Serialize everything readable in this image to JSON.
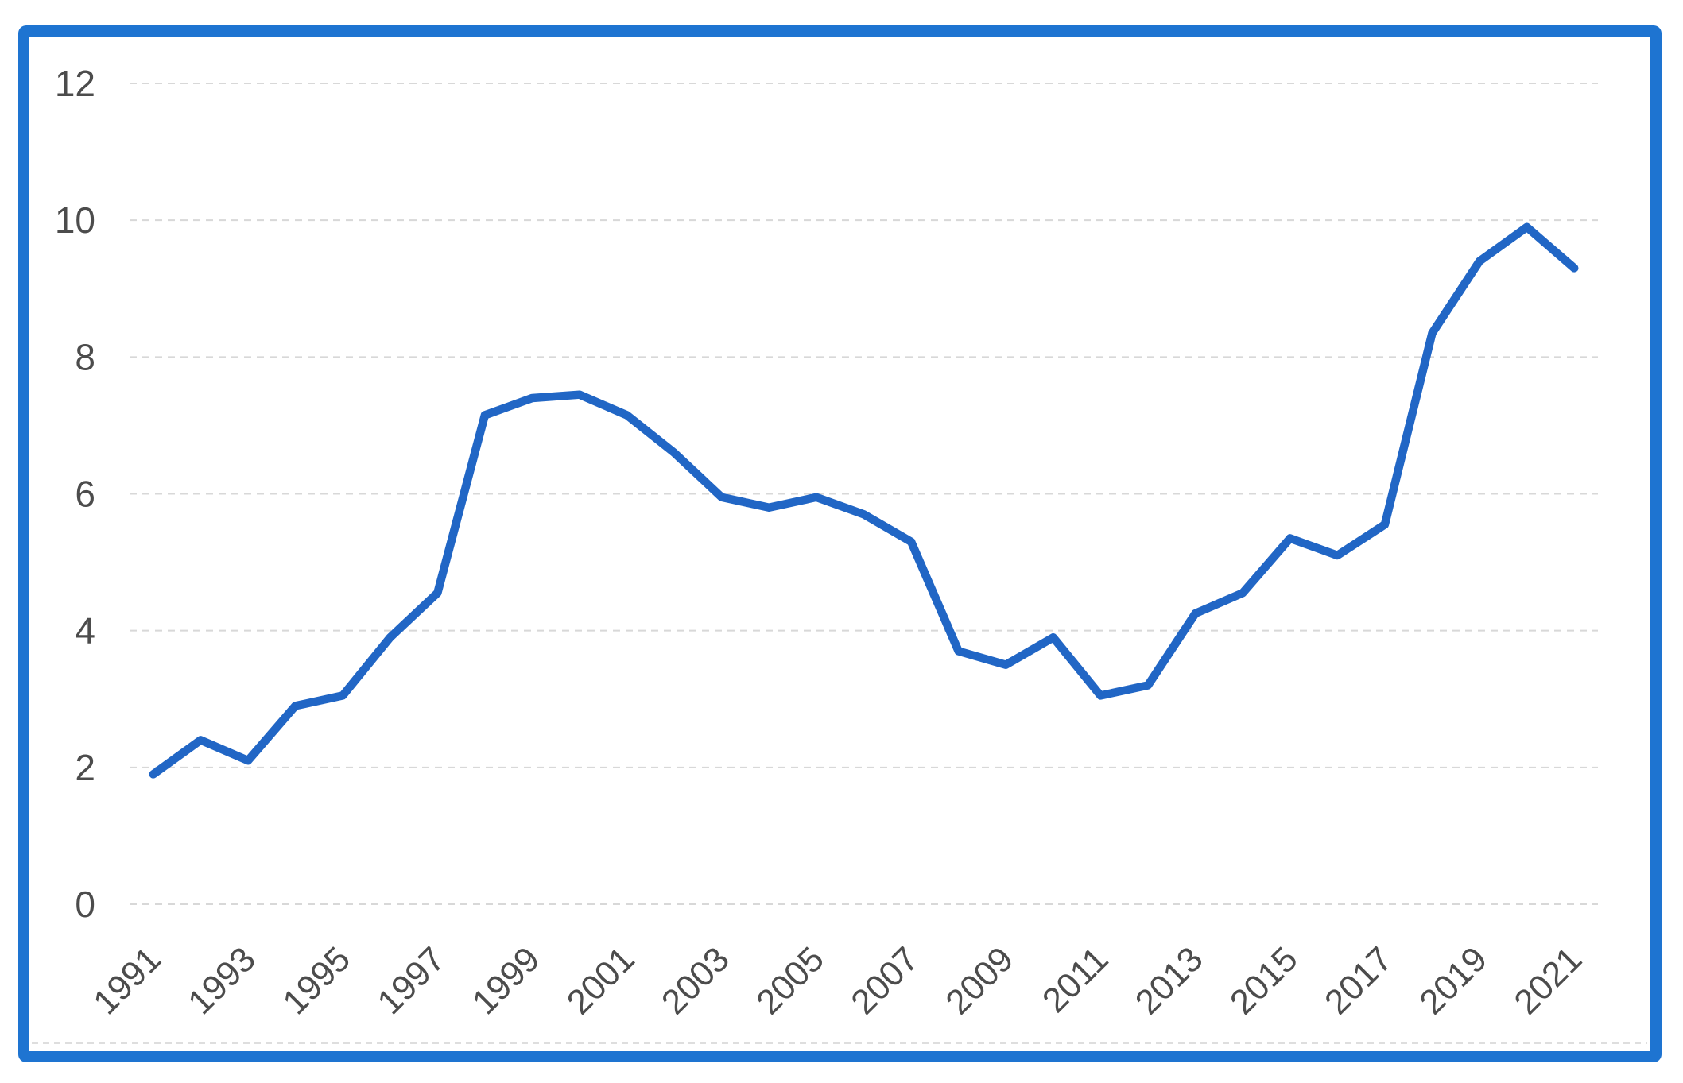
{
  "chart_data": {
    "type": "line",
    "title": "",
    "xlabel": "",
    "ylabel": "",
    "x": [
      1991,
      1992,
      1993,
      1994,
      1995,
      1996,
      1997,
      1998,
      1999,
      2000,
      2001,
      2002,
      2003,
      2004,
      2005,
      2006,
      2007,
      2008,
      2009,
      2010,
      2011,
      2012,
      2013,
      2014,
      2015,
      2016,
      2017,
      2018,
      2019,
      2020,
      2021
    ],
    "values": [
      1.9,
      2.4,
      2.1,
      2.9,
      3.05,
      3.9,
      4.55,
      7.15,
      7.4,
      7.45,
      7.15,
      6.6,
      5.95,
      5.8,
      5.95,
      5.7,
      5.3,
      3.7,
      3.5,
      3.9,
      3.05,
      3.2,
      4.25,
      4.55,
      5.35,
      5.1,
      5.55,
      8.35,
      9.4,
      9.9,
      9.3
    ],
    "xtick_labels": [
      "1991",
      "1993",
      "1995",
      "1997",
      "1999",
      "2001",
      "2003",
      "2005",
      "2007",
      "2009",
      "2011",
      "2013",
      "2015",
      "2017",
      "2019",
      "2021"
    ],
    "yticks": [
      0,
      2,
      4,
      6,
      8,
      10,
      12
    ],
    "ylim": [
      0,
      12
    ],
    "grid": "horizontal-dashed",
    "legend_position": "none"
  },
  "style": {
    "line_color": "#2166c5",
    "frame_color": "#1e74d1",
    "grid_color": "#d8d8d8",
    "panel_edge_color": "#dedede",
    "label_color": "#4c4c4c",
    "background": "#ffffff"
  }
}
